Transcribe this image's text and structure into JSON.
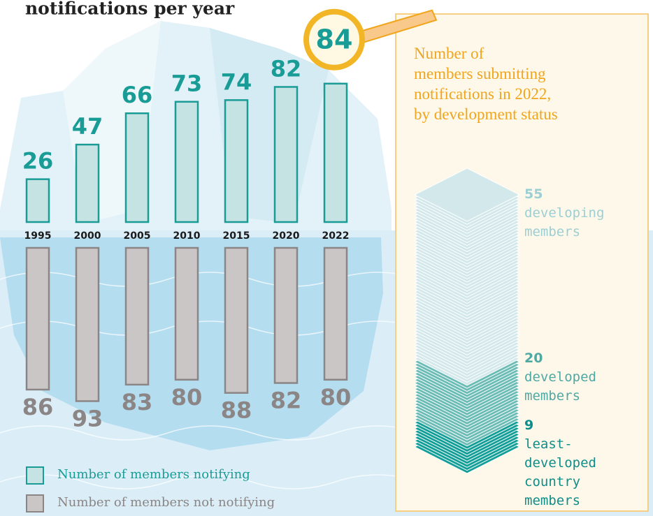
{
  "chart_data": [
    {
      "type": "bar",
      "title": "notifications per year",
      "categories": [
        "1995",
        "2000",
        "2005",
        "2010",
        "2015",
        "2020",
        "2022"
      ],
      "series": [
        {
          "name": "Number of members notifying",
          "color": "#c6e3e3",
          "values": [
            26,
            47,
            66,
            73,
            74,
            82,
            84
          ]
        },
        {
          "name": "Number of members not notifying",
          "color": "#cac6c6",
          "values": [
            86,
            93,
            83,
            80,
            88,
            82,
            80
          ]
        }
      ]
    },
    {
      "type": "stack",
      "title": [
        "Number of",
        "members submitting",
        "notifications in 2022,",
        "by development status"
      ],
      "series": [
        {
          "name": "least-developed country members",
          "color": "#139e98",
          "values": [
            9
          ]
        },
        {
          "name": "developed members",
          "color": "#6bbcb6",
          "values": [
            20
          ]
        },
        {
          "name": "developing members",
          "color": "#d3e8ea",
          "values": [
            55
          ]
        }
      ]
    }
  ]
}
